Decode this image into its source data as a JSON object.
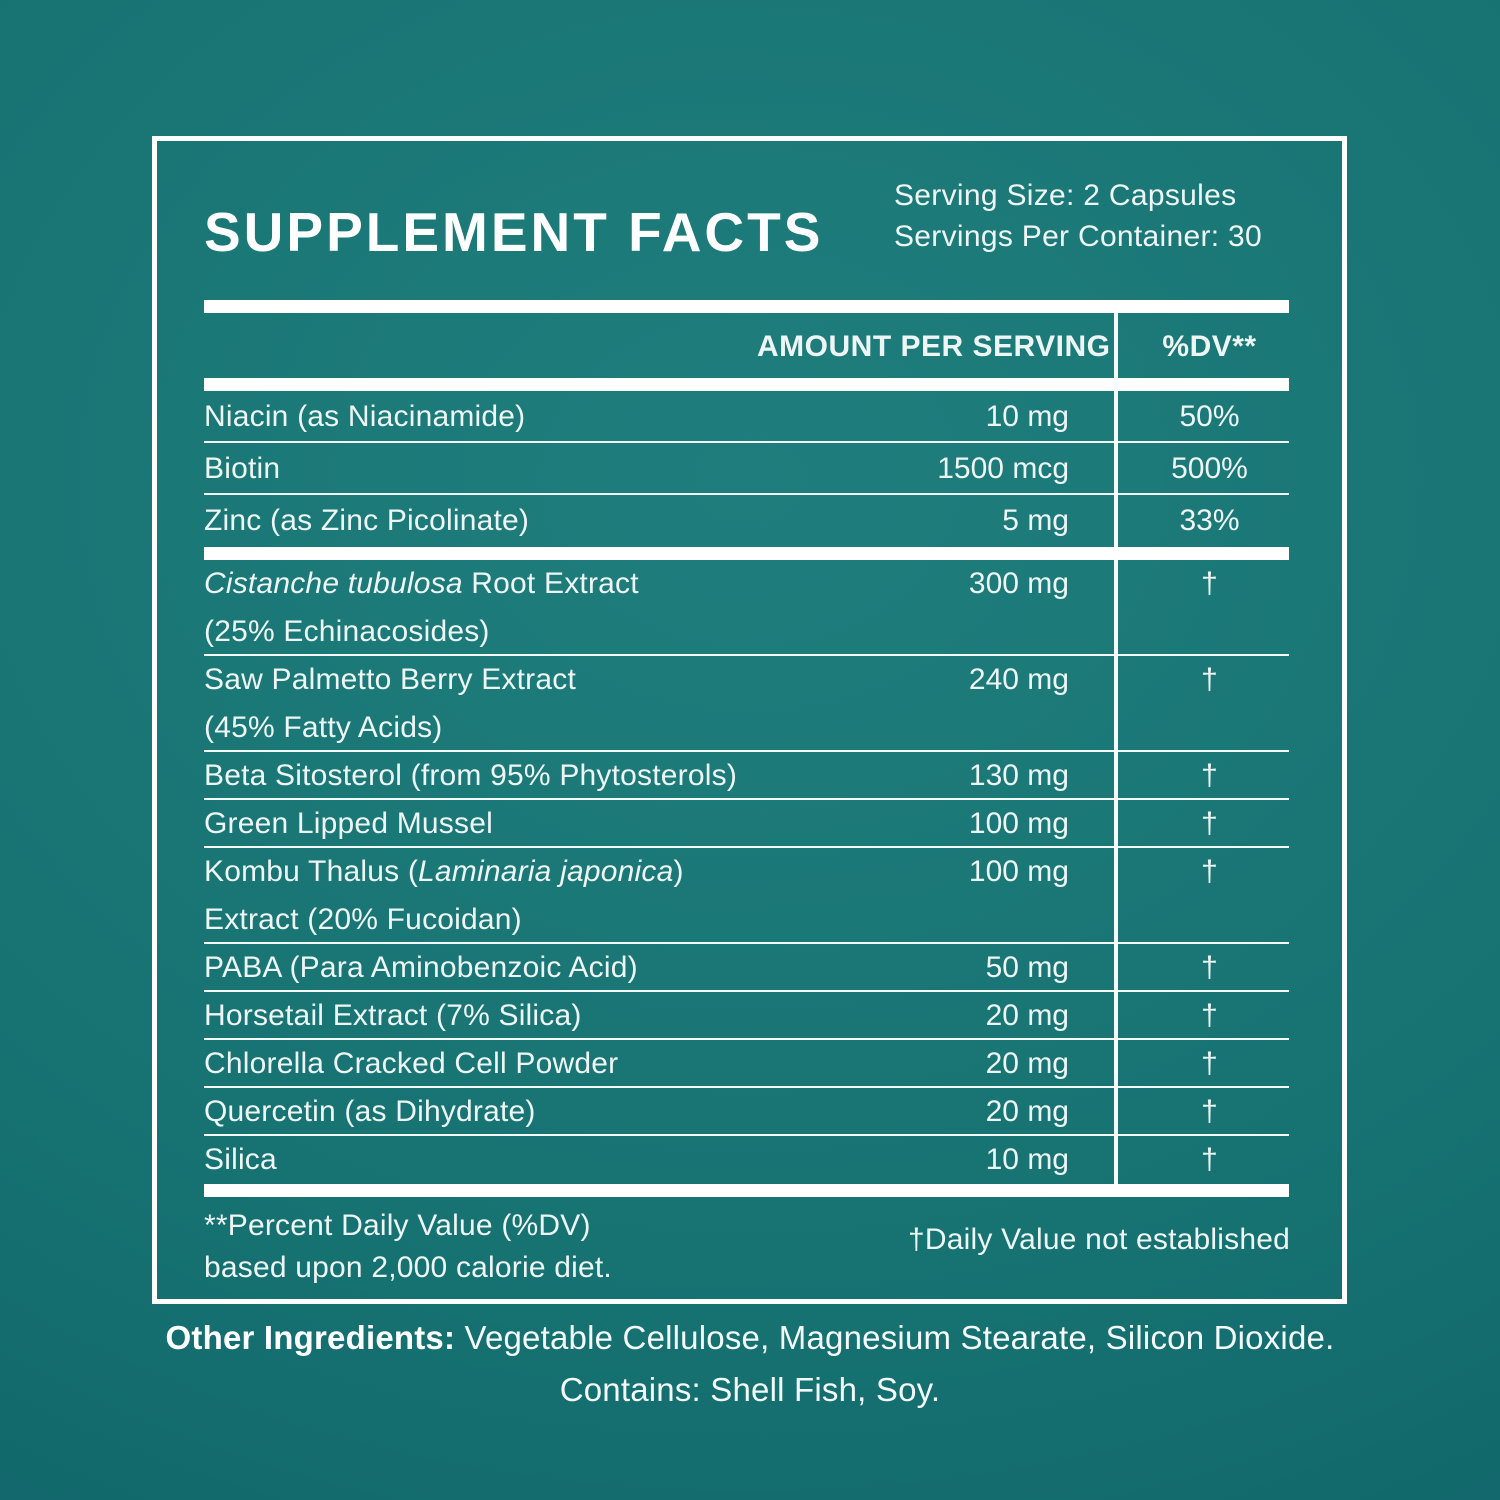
{
  "colors": {
    "background_center": "#1f7e7d",
    "background_edge": "#0e6168",
    "text": "#eef6f5",
    "line": "#ffffff"
  },
  "header": {
    "title": "SUPPLEMENT FACTS",
    "serving_size": "Serving Size: 2 Capsules",
    "servings_per_container": "Servings Per Container: 30"
  },
  "table": {
    "amount_header": "AMOUNT PER SERVING",
    "dv_header": "%DV**",
    "vitamins": [
      {
        "name": [
          {
            "text": "Niacin (as Niacinamide)"
          }
        ],
        "amount": "10 mg",
        "dv": "50%"
      },
      {
        "name": [
          {
            "text": "Biotin"
          }
        ],
        "amount": "1500 mcg",
        "dv": "500%"
      },
      {
        "name": [
          {
            "text": "Zinc (as Zinc Picolinate)"
          }
        ],
        "amount": "5 mg",
        "dv": "33%"
      }
    ],
    "blend": [
      {
        "line1": [
          {
            "text": "Cistanche tubulosa",
            "italic": true
          },
          {
            "text": " Root Extract"
          }
        ],
        "line2": "(25% Echinacosides)",
        "amount": "300 mg",
        "dv": "†"
      },
      {
        "line1": [
          {
            "text": "Saw Palmetto Berry Extract"
          }
        ],
        "line2": "(45% Fatty Acids)",
        "amount": "240 mg",
        "dv": "†"
      },
      {
        "line1": [
          {
            "text": "Beta Sitosterol (from 95% Phytosterols)"
          }
        ],
        "amount": "130 mg",
        "dv": "†"
      },
      {
        "line1": [
          {
            "text": "Green Lipped Mussel"
          }
        ],
        "amount": "100 mg",
        "dv": "†"
      },
      {
        "line1": [
          {
            "text": "Kombu Thalus ("
          },
          {
            "text": "Laminaria japonica",
            "italic": true
          },
          {
            "text": ")"
          }
        ],
        "line2": "Extract (20% Fucoidan)",
        "amount": "100 mg",
        "dv": "†"
      },
      {
        "line1": [
          {
            "text": "PABA (Para Aminobenzoic Acid)"
          }
        ],
        "amount": "50 mg",
        "dv": "†"
      },
      {
        "line1": [
          {
            "text": "Horsetail Extract (7% Silica)"
          }
        ],
        "amount": "20 mg",
        "dv": "†"
      },
      {
        "line1": [
          {
            "text": "Chlorella Cracked Cell Powder"
          }
        ],
        "amount": "20 mg",
        "dv": "†"
      },
      {
        "line1": [
          {
            "text": "Quercetin (as Dihydrate)"
          }
        ],
        "amount": "20 mg",
        "dv": "†"
      },
      {
        "line1": [
          {
            "text": "Silica"
          }
        ],
        "amount": "10 mg",
        "dv": "†"
      }
    ]
  },
  "footnotes": {
    "dv_note_line1": "**Percent Daily Value (%DV)",
    "dv_note_line2": "based upon 2,000 calorie diet.",
    "not_established": "†Daily Value not established"
  },
  "other_ingredients": {
    "label": "Other Ingredients:",
    "text": " Vegetable Cellulose, Magnesium Stearate, Silicon Dioxide.",
    "contains": "Contains: Shell Fish, Soy."
  }
}
